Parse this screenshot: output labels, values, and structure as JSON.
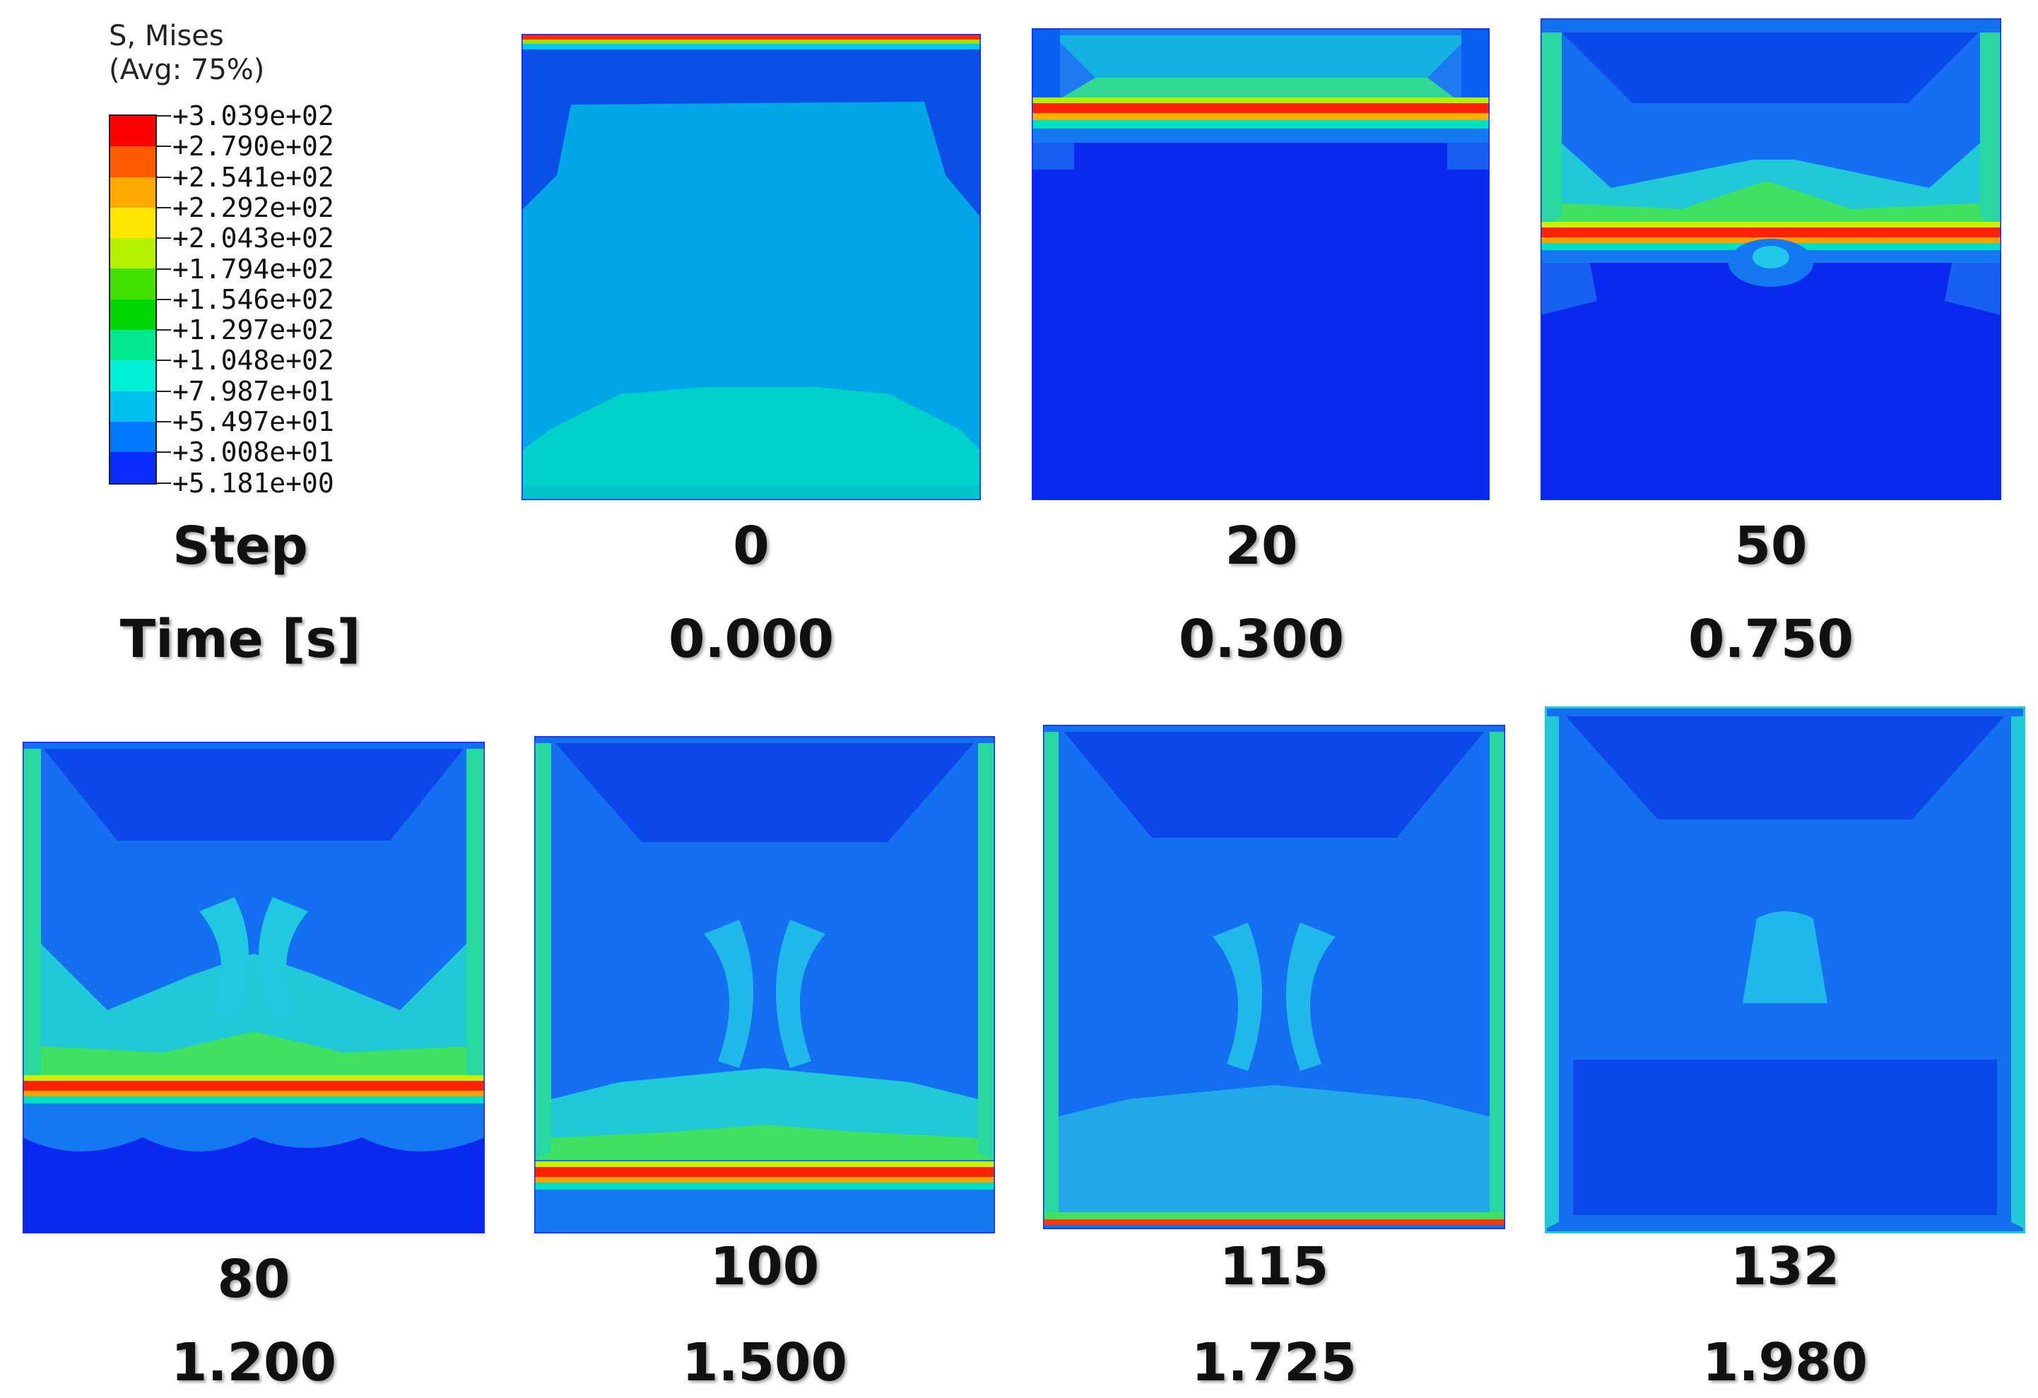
{
  "legend": {
    "title_line1": "S, Mises",
    "title_line2": "(Avg: 75%)",
    "colors": [
      "#ff0000",
      "#ff5a00",
      "#ffa800",
      "#ffe600",
      "#b4f000",
      "#42e000",
      "#00d600",
      "#00e890",
      "#00f0d8",
      "#00c0f0",
      "#0078ff",
      "#0a2cff"
    ],
    "values": [
      "+3.039e+02",
      "+2.790e+02",
      "+2.541e+02",
      "+2.292e+02",
      "+2.043e+02",
      "+1.794e+02",
      "+1.546e+02",
      "+1.297e+02",
      "+1.048e+02",
      "+7.987e+01",
      "+5.497e+01",
      "+3.008e+01",
      "+5.181e+00"
    ]
  },
  "labels": {
    "step": "Step",
    "time": "Time [s]"
  },
  "frames": [
    {
      "step": "0",
      "time": "0.000"
    },
    {
      "step": "20",
      "time": "0.300"
    },
    {
      "step": "50",
      "time": "0.750"
    },
    {
      "step": "80",
      "time": "1.200"
    },
    {
      "step": "100",
      "time": "1.500"
    },
    {
      "step": "115",
      "time": "1.725"
    },
    {
      "step": "132",
      "time": "1.980"
    }
  ]
}
